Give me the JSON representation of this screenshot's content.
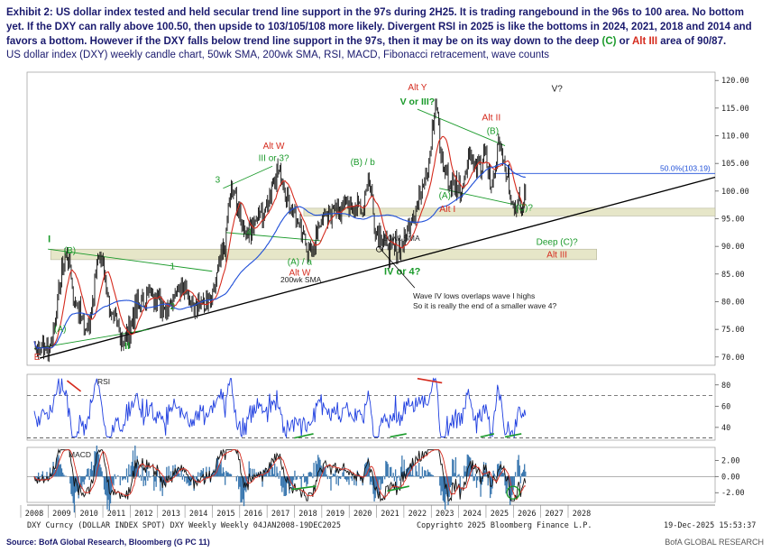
{
  "header": {
    "title_parts": [
      {
        "text": "Exhibit 2: US dollar index tested and held secular trend line support in the 97s during 2H25. It is trading rangebound in the 96s to 100 area. No bottom yet. If the DXY can rally above 100.50, then upside to 103/105/108 more likely. Divergent RSI in 2025 is like the bottoms in 2024, 2021, 2018 and 2014 and favors a bottom. However if the DXY falls below trend line support in the 97s, then it may be on its way down to the deep ",
        "style": "n"
      },
      {
        "text": "(C)",
        "style": "g"
      },
      {
        "text": " or ",
        "style": "n"
      },
      {
        "text": "Alt III",
        "style": "r"
      },
      {
        "text": " area of 90/87.",
        "style": "n"
      }
    ],
    "subtitle": "US dollar index (DXY) weekly candle chart, 50wk SMA, 200wk SMA, RSI, MACD, Fibonacci retracement, wave counts"
  },
  "chart_data": [
    {
      "type": "line",
      "panel": "price",
      "title": "",
      "x": [
        2008.0,
        2008.5,
        2009.2,
        2009.5,
        2009.9,
        2010.4,
        2010.9,
        2011.3,
        2011.8,
        2012.3,
        2012.8,
        2013.3,
        2013.8,
        2014.4,
        2014.9,
        2015.2,
        2015.7,
        2016.3,
        2016.9,
        2017.4,
        2017.8,
        2018.1,
        2018.6,
        2019.0,
        2019.5,
        2020.0,
        2020.2,
        2020.5,
        2021.0,
        2021.4,
        2021.9,
        2022.3,
        2022.7,
        2022.9,
        2023.2,
        2023.6,
        2023.9,
        2024.2,
        2024.5,
        2024.7,
        2025.0,
        2025.2,
        2025.5,
        2025.7,
        2025.95
      ],
      "series": [
        {
          "values": [
            72.0,
            71.5,
            88.5,
            80.0,
            75.0,
            88.0,
            76.5,
            73.0,
            79.5,
            81.5,
            79.0,
            83.0,
            80.0,
            79.5,
            88.5,
            100.0,
            93.0,
            95.5,
            103.5,
            97.0,
            92.0,
            89.0,
            95.5,
            96.5,
            97.5,
            97.0,
            103.0,
            93.0,
            89.5,
            90.0,
            96.5,
            103.0,
            114.8,
            105.0,
            101.5,
            100.5,
            106.5,
            103.5,
            106.0,
            100.5,
            109.5,
            104.0,
            97.0,
            98.5,
            98.5
          ]
        }
      ],
      "y_ticks": [
        "120.00",
        "115.00",
        "110.00",
        "105.00",
        "100.00",
        "95.00",
        "90.00",
        "85.00",
        "80.00",
        "75.00",
        "70.00"
      ],
      "ylim": [
        68.5,
        121.5
      ],
      "fib_label": "50.0%(103.19)",
      "fib_value": 103.19,
      "sma_labels": [
        "50wk SMA",
        "200wk SMA"
      ],
      "wave_labels": [
        {
          "text": "I",
          "color": "#1a9a2a"
        },
        {
          "text": "(B)",
          "color": "#1a9a2a"
        },
        {
          "text": "(A)",
          "color": "#1a9a2a"
        },
        {
          "text": "II",
          "color": "#1a9a2a"
        },
        {
          "text": "E",
          "color": "#d52b1e"
        },
        {
          "text": "1",
          "color": "#1a9a2a"
        },
        {
          "text": "2",
          "color": "#1a9a2a"
        },
        {
          "text": "3",
          "color": "#1a9a2a"
        },
        {
          "text": "4",
          "color": "#1a9a2a"
        },
        {
          "text": "Alt W",
          "color": "#d52b1e"
        },
        {
          "text": "III or 3?",
          "color": "#1a9a2a"
        },
        {
          "text": "(A) / a",
          "color": "#1a9a2a"
        },
        {
          "text": "Alt W",
          "color": "#d52b1e"
        },
        {
          "text": "(B) / b",
          "color": "#1a9a2a"
        },
        {
          "text": "IV or 4?",
          "color": "#1a9a2a"
        },
        {
          "text": "Alt Y",
          "color": "#d52b1e"
        },
        {
          "text": "V or III?",
          "color": "#1a9a2a"
        },
        {
          "text": "(A)",
          "color": "#1a9a2a"
        },
        {
          "text": "Alt I",
          "color": "#d52b1e"
        },
        {
          "text": "Alt II",
          "color": "#d52b1e"
        },
        {
          "text": "(B)",
          "color": "#1a9a2a"
        },
        {
          "text": "(C)?",
          "color": "#1a9a2a"
        },
        {
          "text": "V?",
          "color": "#222222"
        },
        {
          "text": "Deep (C)?",
          "color": "#1a9a2a"
        },
        {
          "text": "Alt III",
          "color": "#d52b1e"
        }
      ],
      "annotation": [
        "Wave IV lows overlaps wave I highs",
        "So it is really the end of a smaller wave 4?"
      ]
    },
    {
      "type": "line",
      "panel": "rsi",
      "title": "RSI",
      "y_ticks": [
        "80",
        "60",
        "40"
      ],
      "ylim": [
        28,
        90
      ],
      "levels": [
        70,
        30
      ]
    },
    {
      "type": "line",
      "panel": "macd",
      "title": "MACD",
      "y_ticks": [
        "2.00",
        "0.00",
        "-2.00"
      ],
      "ylim": [
        -3.2,
        3.6
      ]
    }
  ],
  "x_axis": {
    "labels": [
      "2008",
      "2009",
      "2010",
      "2011",
      "2012",
      "2013",
      "2014",
      "2015",
      "2016",
      "2017",
      "2018",
      "2019",
      "2020",
      "2021",
      "2022",
      "2023",
      "2024",
      "2025",
      "2026",
      "2027",
      "2028"
    ]
  },
  "footer": {
    "left": "DXY Curncy (DOLLAR INDEX SPOT) DXY Weekly Weekly 04JAN2008-19DEC2025",
    "center": "Copyright© 2025 Bloomberg Finance L.P.",
    "right": "19-Dec-2025 15:53:37",
    "source": "Source: BofA Global Research, Bloomberg (G PC 11)",
    "brand": "BofA GLOBAL RESEARCH"
  },
  "colors": {
    "price": "#111111",
    "sma50": "#d52b1e",
    "sma200": "#1f4fd8",
    "rsi": "#1f3fe0",
    "macd_line": "#111111",
    "macd_signal": "#d52b1e",
    "macd_hist": "#3b78b0",
    "bull": "#1a9a2a",
    "bear": "#d52b1e",
    "band": "#e6e6c8"
  }
}
